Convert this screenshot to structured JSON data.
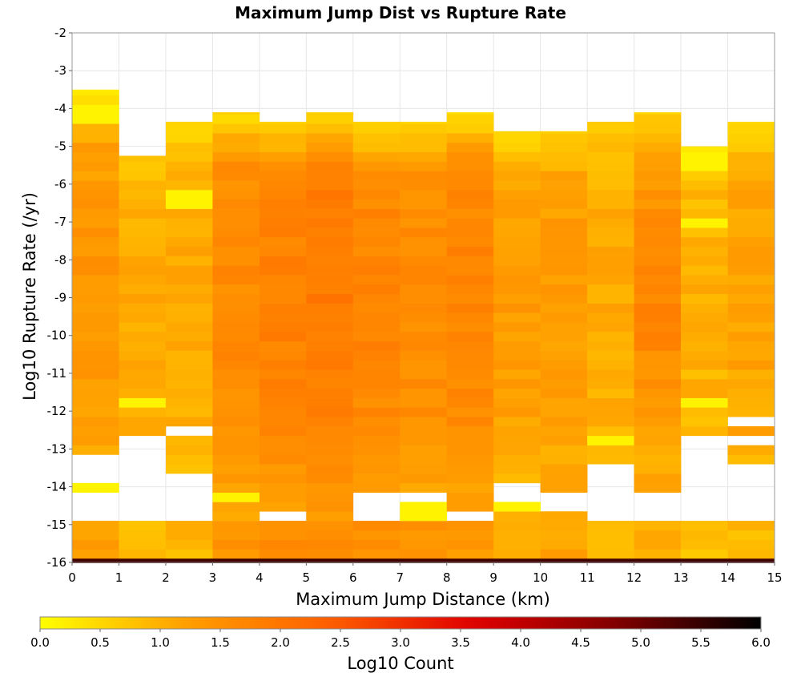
{
  "chart_data": {
    "type": "heatmap",
    "title": "Maximum Jump Dist vs Rupture Rate",
    "xlabel": "Maximum Jump Distance (km)",
    "ylabel": "Log10 Rupture Rate (/yr)",
    "colorbar_label": "Log10 Count",
    "xlim": [
      0,
      15
    ],
    "ylim": [
      -16,
      -2
    ],
    "x_ticks": [
      "0",
      "1",
      "2",
      "3",
      "4",
      "5",
      "6",
      "7",
      "8",
      "9",
      "10",
      "11",
      "12",
      "13",
      "14",
      "15"
    ],
    "y_ticks": [
      "-2",
      "-3",
      "-4",
      "-5",
      "-6",
      "-7",
      "-8",
      "-9",
      "-10",
      "-11",
      "-12",
      "-13",
      "-14",
      "-15",
      "-16"
    ],
    "color_range": [
      0.0,
      6.0
    ],
    "colorbar_ticks": [
      "0.0",
      "0.5",
      "1.0",
      "1.5",
      "2.0",
      "2.5",
      "3.0",
      "3.5",
      "4.0",
      "4.5",
      "5.0",
      "5.5",
      "6.0"
    ],
    "colormap": [
      "#ffff00",
      "#ffa000",
      "#ff6000",
      "#e00000",
      "#800000",
      "#000000"
    ],
    "grid": true,
    "x_bin_width_km": 1,
    "y_bin_height": 0.25,
    "bottom_row": {
      "log_rate_range": [
        -16,
        -15.9
      ],
      "log_count": 5.4
    },
    "columns": [
      {
        "x": 0,
        "top": -3.5,
        "low": 0.3,
        "mid": 1.2,
        "high": 1.4,
        "gaps": [
          [
            -13.2,
            -13.85
          ],
          [
            -14.15,
            -15.0
          ]
        ],
        "bright": [
          -14.0,
          -4.1
        ],
        "bottom": 1.2
      },
      {
        "x": 1,
        "top": -5.25,
        "low": 0.6,
        "mid": 1.0,
        "high": 1.1,
        "gaps": [
          [
            -12.75,
            -15.0
          ]
        ],
        "bright": [
          -11.8
        ],
        "bottom": 0.9
      },
      {
        "x": 2,
        "top": -4.35,
        "low": 0.4,
        "mid": 1.0,
        "high": 1.1,
        "gaps": [
          [
            -12.35,
            -12.6
          ],
          [
            -13.55,
            -15.0
          ]
        ],
        "bright": [
          -6.4
        ],
        "bottom": 0.9
      },
      {
        "x": 3,
        "top": -4.1,
        "low": 0.5,
        "mid": 1.5,
        "high": 1.6,
        "gaps": [],
        "bright": [
          -14.3
        ],
        "bottom": 1.4
      },
      {
        "x": 4,
        "top": -4.35,
        "low": 0.6,
        "mid": 1.6,
        "high": 1.8,
        "gaps": [
          [
            -14.55,
            -14.8
          ]
        ],
        "bright": [],
        "bottom": 1.5
      },
      {
        "x": 5,
        "top": -4.1,
        "low": 0.5,
        "mid": 1.8,
        "high": 1.9,
        "gaps": [],
        "bright": [],
        "bottom": 1.6
      },
      {
        "x": 6,
        "top": -4.35,
        "low": 0.4,
        "mid": 1.6,
        "high": 1.7,
        "gaps": [
          [
            -14.1,
            -14.8
          ]
        ],
        "bright": [],
        "bottom": 1.5
      },
      {
        "x": 7,
        "top": -4.35,
        "low": 0.4,
        "mid": 1.5,
        "high": 1.6,
        "gaps": [
          [
            -14.1,
            -14.3
          ]
        ],
        "bright": [
          -14.6
        ],
        "bottom": 1.4
      },
      {
        "x": 8,
        "top": -4.1,
        "low": 0.4,
        "mid": 1.6,
        "high": 1.7,
        "gaps": [
          [
            -14.55,
            -14.8
          ]
        ],
        "bright": [],
        "bottom": 1.3
      },
      {
        "x": 9,
        "top": -4.6,
        "low": 0.4,
        "mid": 1.2,
        "high": 1.3,
        "gaps": [
          [
            -13.8,
            -14.3
          ]
        ],
        "bright": [
          -14.5
        ],
        "bottom": 1.0
      },
      {
        "x": 10,
        "top": -4.6,
        "low": 0.5,
        "mid": 1.2,
        "high": 1.3,
        "gaps": [
          [
            -14.1,
            -14.55
          ]
        ],
        "bright": [],
        "bottom": 1.2
      },
      {
        "x": 11,
        "top": -4.35,
        "low": 0.5,
        "mid": 1.0,
        "high": 1.1,
        "gaps": [
          [
            -13.35,
            -15.0
          ]
        ],
        "bright": [
          -12.8
        ],
        "bottom": 0.8
      },
      {
        "x": 12,
        "top": -4.1,
        "low": 0.6,
        "mid": 1.2,
        "high": 1.7,
        "gaps": [
          [
            -14.1,
            -14.8
          ]
        ],
        "bright": [],
        "bottom": 1.1
      },
      {
        "x": 13,
        "top": -5.0,
        "low": 0.4,
        "mid": 0.9,
        "high": 1.0,
        "gaps": [
          [
            -12.6,
            -15.0
          ]
        ],
        "bright": [
          -11.8,
          -5.4,
          -7.0
        ],
        "bottom": 0.8
      },
      {
        "x": 14,
        "top": -4.35,
        "low": 0.4,
        "mid": 1.1,
        "high": 1.2,
        "gaps": [
          [
            -12.1,
            -12.35
          ],
          [
            -12.6,
            -12.85
          ],
          [
            -13.35,
            -15.0
          ]
        ],
        "bright": [],
        "bottom": 0.9
      }
    ]
  }
}
